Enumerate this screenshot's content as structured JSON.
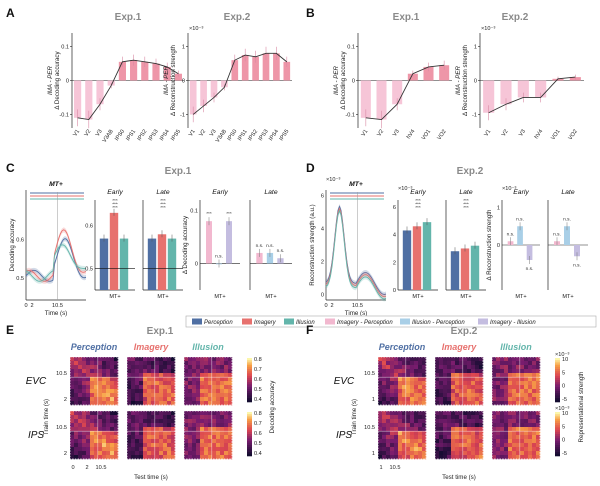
{
  "colors": {
    "perception": "#4f6fa3",
    "imagery": "#e7716e",
    "illusion": "#63b5ab",
    "imagery_minus_perception": "#f2b8cf",
    "illusion_minus_perception": "#a9cfe7",
    "imagery_minus_illusion": "#c4bde0",
    "title_gray": "#8a8a8a"
  },
  "panels": {
    "A": {
      "letter": "A",
      "exp1": {
        "title": "Exp.1",
        "ylabel_top": "IMA - PER",
        "ylabel_bottom": "Δ Decoding accuracy",
        "yticks": [
          "0.1",
          "0",
          "-0.1"
        ],
        "categories": [
          "V1",
          "V2",
          "V3",
          "V3AB",
          "IPS0",
          "IPS1",
          "IPS2",
          "IPS3",
          "IPS4",
          "IPS5"
        ],
        "values": [
          -0.11,
          -0.115,
          -0.07,
          -0.015,
          0.055,
          0.06,
          0.055,
          0.05,
          0.04,
          0.02
        ]
      },
      "exp2": {
        "title": "Exp.2",
        "ylabel_top": "IMA - PER",
        "ylabel_bottom": "Δ Reconstruction strength",
        "exponent": "×10⁻³",
        "yticks": [
          "1",
          "0",
          "-1"
        ],
        "categories": [
          "V1",
          "V2",
          "V3",
          "V3AB",
          "IPS0",
          "IPS1",
          "IPS2",
          "IPS3",
          "IPS4",
          "IPS5"
        ],
        "values": [
          -1.0,
          -0.75,
          -0.5,
          -0.2,
          0.6,
          0.75,
          0.7,
          0.8,
          0.8,
          0.55
        ]
      }
    },
    "B": {
      "letter": "B",
      "exp1": {
        "title": "Exp.1",
        "ylabel_top": "IMA - PER",
        "ylabel_bottom": "Δ Decoding accuracy",
        "yticks": [
          "0.1",
          "0",
          "-0.1"
        ],
        "categories": [
          "V1",
          "V2",
          "V3",
          "hV4",
          "VO1",
          "VO2"
        ],
        "values": [
          -0.11,
          -0.115,
          -0.07,
          0.02,
          0.04,
          0.045
        ]
      },
      "exp2": {
        "title": "Exp.2",
        "ylabel_top": "IMA - PER",
        "ylabel_bottom": "Δ Reconstruction strength",
        "exponent": "×10⁻³",
        "yticks": [
          "1",
          "0",
          "-1"
        ],
        "categories": [
          "V1",
          "V2",
          "V3",
          "hV4",
          "VO1",
          "VO2"
        ],
        "values": [
          -0.95,
          -0.7,
          -0.5,
          -0.5,
          0.05,
          0.1
        ]
      }
    },
    "C": {
      "letter": "C",
      "title": "Exp.1",
      "tc_title": "MT+",
      "tc_ylabel": "Decoding accuracy",
      "tc_xlabel": "Time (s)",
      "tc_xticks": [
        "0",
        "2",
        "10.5"
      ],
      "early": "Early",
      "late": "Late",
      "mt": "MT+",
      "bar_yticks": [
        "0.6",
        "0.5"
      ],
      "early_values": [
        0.57,
        0.63,
        0.57
      ],
      "late_values": [
        0.57,
        0.58,
        0.57
      ],
      "diff_ylabel": "Δ Decoding accuracy",
      "diff_yticks": [
        "0.1",
        "0"
      ],
      "early_diff": [
        0.08,
        0.0,
        0.08
      ],
      "late_diff": [
        0.02,
        0.02,
        0.01
      ],
      "sig_stars": "***",
      "sig_ns": "n.s."
    },
    "D": {
      "letter": "D",
      "title": "Exp.2",
      "tc_title": "MT+",
      "tc_ylabel": "Reconstruction strength (a.u.)",
      "tc_xlabel": "Time (s)",
      "tc_exponent": "×10⁻³",
      "tc_yticks": [
        "6",
        "4",
        "2",
        "0"
      ],
      "tc_xticks": [
        "0",
        "2",
        "10.5"
      ],
      "early": "Early",
      "late": "Late",
      "mt": "MT+",
      "bar_exponent": "×10⁻³",
      "bar_yticks": [
        "6",
        "4",
        "2",
        "0"
      ],
      "early_values": [
        4.3,
        4.6,
        4.9
      ],
      "late_values": [
        2.8,
        3.0,
        3.2
      ],
      "diff_ylabel": "Δ Reconstruction strength",
      "diff_exponent": "×10⁻³",
      "diff_yticks": [
        "1",
        "0"
      ],
      "early_diff": [
        0.1,
        0.5,
        -0.4
      ],
      "late_diff": [
        0.1,
        0.5,
        -0.3
      ],
      "sig_stars": "***",
      "sig_ns": "n.s."
    },
    "E": {
      "letter": "E",
      "title": "Exp.1",
      "conditions": [
        "Perception",
        "Imagery",
        "Illusion"
      ],
      "rows": [
        "EVC",
        "IPS"
      ],
      "ylabel": "Train time (s)",
      "xlabel": "Test time (s)",
      "ticks": [
        "2",
        "10.5"
      ],
      "x_ticks": [
        "0",
        "2",
        "10.5"
      ],
      "cbar_label": "Decoding accuracy",
      "cbar_ticks": [
        "0.8",
        "0.7",
        "0.6",
        "0.5",
        "0.4"
      ]
    },
    "F": {
      "letter": "F",
      "title": "Exp.2",
      "conditions": [
        "Perception",
        "Imagery",
        "Illusion"
      ],
      "rows": [
        "EVC",
        "IPS"
      ],
      "ylabel": "Train time (s)",
      "xlabel": "Test time (s)",
      "ticks": [
        "1",
        "10.5"
      ],
      "x_ticks": [
        "1",
        "10.5"
      ],
      "cbar_label": "Representational strength",
      "cbar_exponent": "×10⁻³",
      "cbar_ticks_top": [
        "10",
        "5",
        "0",
        "-5"
      ],
      "cbar_ticks_bottom": [
        "10",
        "5",
        "0",
        "-5"
      ]
    }
  },
  "legend": {
    "items": [
      "Perception",
      "Imagery",
      "Illusion",
      "Imagery - Perception",
      "Illusion - Perception",
      "Imagery - Illusion"
    ]
  }
}
